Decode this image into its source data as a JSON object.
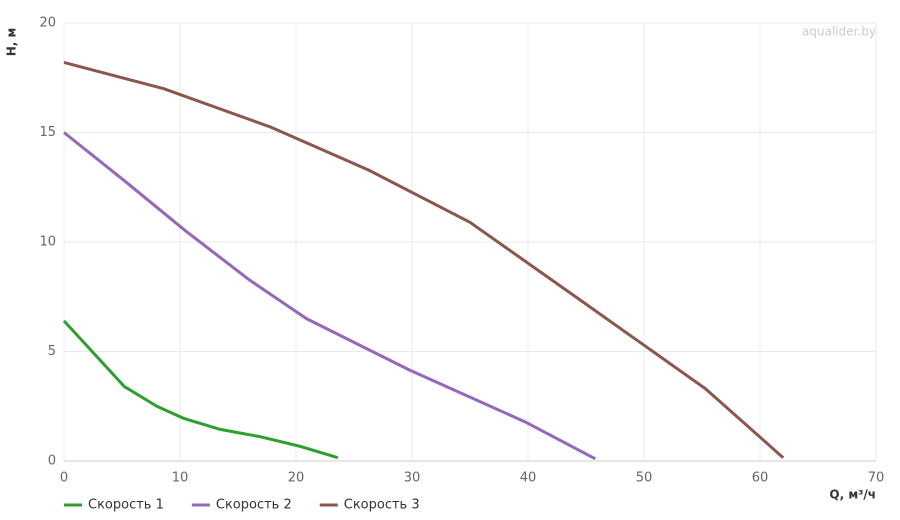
{
  "chart_data": {
    "type": "line",
    "watermark": "aqualider.by",
    "x_label": "Q, м³/ч",
    "y_label": "H, м",
    "xlim": [
      0,
      70
    ],
    "xticks": [
      0,
      10,
      20,
      30,
      40,
      50,
      60,
      70
    ],
    "ylim": [
      0,
      20
    ],
    "yticks": [
      0,
      5,
      10,
      15,
      20
    ],
    "grid": true,
    "legend": "bottom-left",
    "series": [
      {
        "name": "Скорость 1",
        "color": "#2ca02c",
        "x": [
          0,
          5.2,
          8,
          10.3,
          13.4,
          17,
          20.5,
          23.6
        ],
        "values": [
          6.4,
          3.4,
          2.5,
          1.95,
          1.45,
          1.1,
          0.65,
          0.15
        ]
      },
      {
        "name": "Скорость 2",
        "color": "#9467bd",
        "x": [
          0,
          5.2,
          10.5,
          15.9,
          20.9,
          29.8,
          39.7,
          45.8
        ],
        "values": [
          15,
          12.8,
          10.5,
          8.3,
          6.5,
          4.15,
          1.8,
          0.1
        ]
      },
      {
        "name": "Скорость 3",
        "color": "#8c564b",
        "x": [
          0,
          8.6,
          17.8,
          26.2,
          35,
          44.5,
          55.3,
          62
        ],
        "values": [
          18.2,
          17,
          15.25,
          13.3,
          10.9,
          7.35,
          3.3,
          0.15
        ]
      }
    ]
  }
}
